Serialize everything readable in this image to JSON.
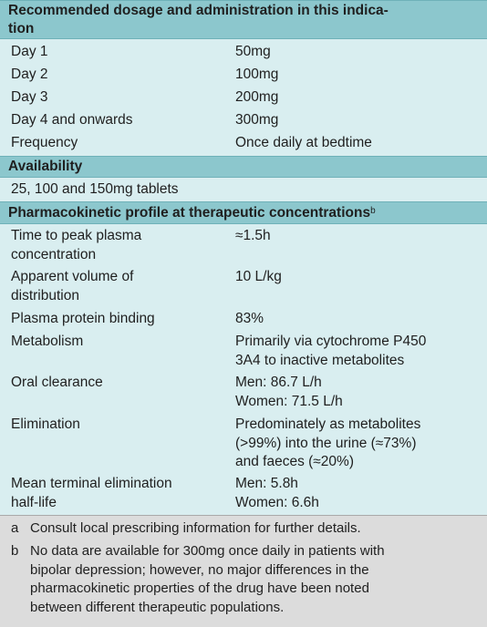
{
  "section1": {
    "title_line1": "Recommended dosage and administration in this indica-",
    "title_line2": "tion",
    "rows": [
      {
        "label": "Day 1",
        "value": "50mg"
      },
      {
        "label": "Day 2",
        "value": "100mg"
      },
      {
        "label": "Day 3",
        "value": "200mg"
      },
      {
        "label": "Day 4 and onwards",
        "value": "300mg"
      },
      {
        "label": "Frequency",
        "value": "Once daily at bedtime"
      }
    ]
  },
  "section2": {
    "title": "Availability",
    "text": "25, 100 and 150mg tablets"
  },
  "section3": {
    "title": "Pharmacokinetic profile at therapeutic concentrations",
    "title_sup": "b",
    "rows": [
      {
        "label1": "Time to peak plasma",
        "label2": "concentration",
        "value1": "≈1.5h",
        "value2": "",
        "value3": ""
      },
      {
        "label1": "Apparent volume of",
        "label2": "distribution",
        "value1": "10 L/kg",
        "value2": "",
        "value3": ""
      },
      {
        "label1": "Plasma protein binding",
        "label2": "",
        "value1": "83%",
        "value2": "",
        "value3": ""
      },
      {
        "label1": "Metabolism",
        "label2": "",
        "value1": "Primarily via cytochrome P450",
        "value2": "3A4 to inactive metabolites",
        "value3": ""
      },
      {
        "label1": "Oral clearance",
        "label2": "",
        "value1": "Men: 86.7 L/h",
        "value2": "Women: 71.5 L/h",
        "value3": ""
      },
      {
        "label1": "Elimination",
        "label2": "",
        "value1": "Predominately as metabolites",
        "value2": "(>99%) into the urine (≈73%)",
        "value3": "and faeces (≈20%)"
      },
      {
        "label1": "Mean terminal elimination",
        "label2": "half-life",
        "value1": "Men: 5.8h",
        "value2": "Women: 6.6h",
        "value3": ""
      }
    ]
  },
  "footnotes": [
    {
      "key": "a",
      "lines": [
        "Consult local prescribing information for further details."
      ]
    },
    {
      "key": "b",
      "lines": [
        "No data are available for 300mg once daily in patients with",
        "bipolar depression; however, no major differences in the",
        "pharmacokinetic properties of the drug have been noted",
        "between different therapeutic populations."
      ]
    }
  ]
}
